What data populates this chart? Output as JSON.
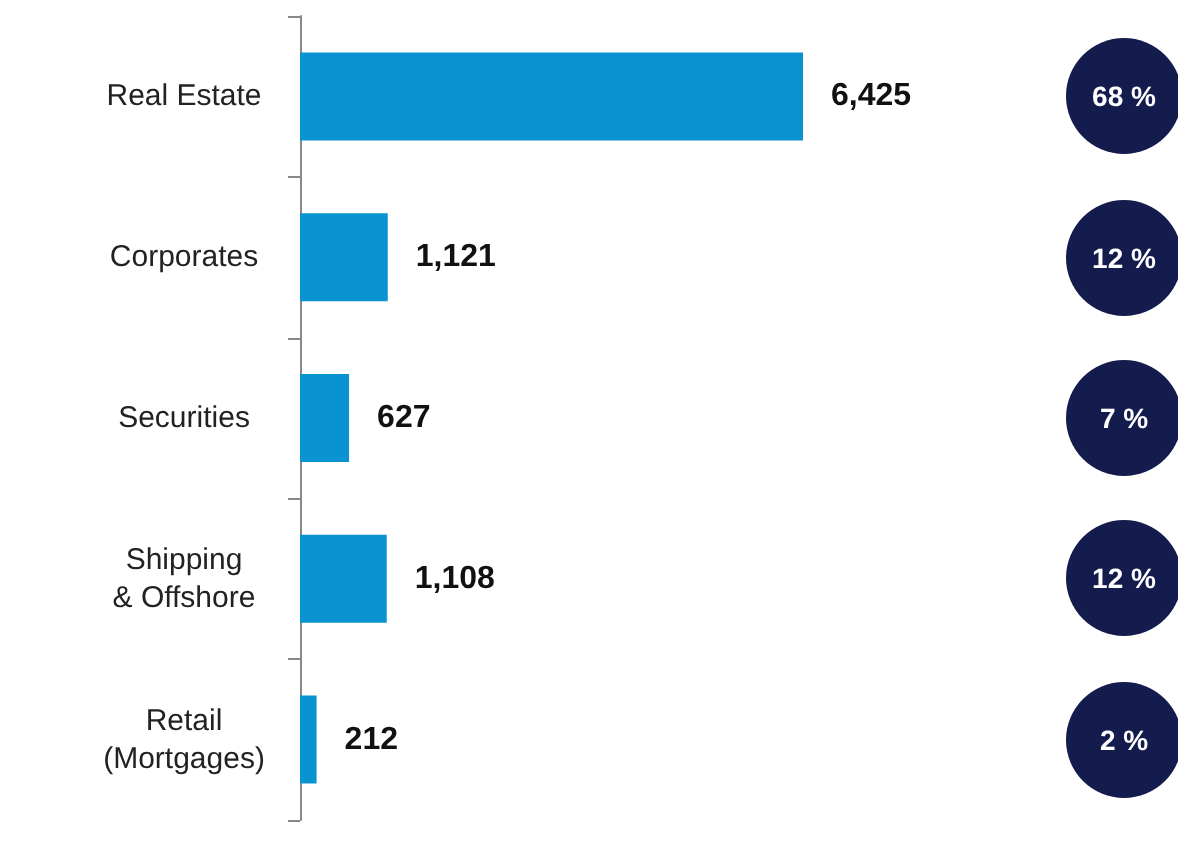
{
  "chart_data": {
    "type": "bar",
    "orientation": "horizontal",
    "categories": [
      "Real Estate",
      "Corporates",
      "Securities",
      "Shipping\n& Offshore",
      "Retail\n(Mortgages)"
    ],
    "values": [
      6425,
      1121,
      627,
      1108,
      212
    ],
    "value_labels": [
      "6,425",
      "1,121",
      "627",
      "1,108",
      "212"
    ],
    "color": "#0a93d1",
    "annotations": [
      "68 %",
      "12 %",
      "7 %",
      "12 %",
      "2 %"
    ]
  }
}
